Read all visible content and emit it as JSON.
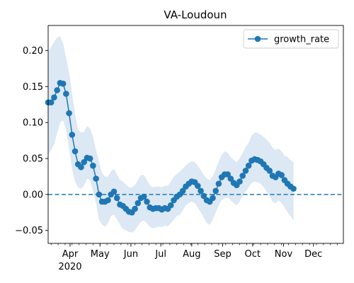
{
  "chart_data": {
    "type": "line",
    "title": "VA-Loudoun",
    "xlabel": "",
    "ylabel": "",
    "x_range": [
      "2020-03-10",
      "2020-12-31"
    ],
    "ylim": [
      -0.068,
      0.235
    ],
    "y_ticks": [
      -0.05,
      0.0,
      0.05,
      0.1,
      0.15,
      0.2
    ],
    "y_tick_labels": [
      "−0.05",
      "0.00",
      "0.05",
      "0.10",
      "0.15",
      "0.20"
    ],
    "x_ticks": [
      {
        "date": "2020-04-01",
        "label": "Apr",
        "sublabel": "2020"
      },
      {
        "date": "2020-05-01",
        "label": "May",
        "sublabel": ""
      },
      {
        "date": "2020-06-01",
        "label": "Jun",
        "sublabel": ""
      },
      {
        "date": "2020-07-01",
        "label": "Jul",
        "sublabel": ""
      },
      {
        "date": "2020-08-01",
        "label": "Aug",
        "sublabel": ""
      },
      {
        "date": "2020-09-01",
        "label": "Sep",
        "sublabel": ""
      },
      {
        "date": "2020-10-01",
        "label": "Oct",
        "sublabel": ""
      },
      {
        "date": "2020-11-01",
        "label": "Nov",
        "sublabel": ""
      },
      {
        "date": "2020-12-01",
        "label": "Dec",
        "sublabel": ""
      }
    ],
    "reference_line": {
      "y": 0,
      "style": "dashed"
    },
    "grid": false,
    "legend": {
      "position": "upper right",
      "entries": [
        "growth_rate"
      ]
    },
    "series": [
      {
        "name": "growth_rate",
        "color": "#1f77b4",
        "band_color": "#dce8f4",
        "points": [
          [
            "2020-03-10",
            0.128,
            0.198,
            0.055
          ],
          [
            "2020-03-13",
            0.128,
            0.205,
            0.062
          ],
          [
            "2020-03-16",
            0.135,
            0.212,
            0.07
          ],
          [
            "2020-03-19",
            0.145,
            0.218,
            0.085
          ],
          [
            "2020-03-22",
            0.155,
            0.22,
            0.1
          ],
          [
            "2020-03-25",
            0.154,
            0.21,
            0.103
          ],
          [
            "2020-03-28",
            0.14,
            0.19,
            0.09
          ],
          [
            "2020-03-31",
            0.113,
            0.17,
            0.063
          ],
          [
            "2020-04-03",
            0.083,
            0.14,
            0.035
          ],
          [
            "2020-04-06",
            0.06,
            0.112,
            0.018
          ],
          [
            "2020-04-09",
            0.042,
            0.09,
            0.01
          ],
          [
            "2020-04-12",
            0.038,
            0.086,
            0.008
          ],
          [
            "2020-04-15",
            0.045,
            0.087,
            0.012
          ],
          [
            "2020-04-18",
            0.051,
            0.095,
            0.022
          ],
          [
            "2020-04-21",
            0.05,
            0.092,
            0.02
          ],
          [
            "2020-04-24",
            0.04,
            0.08,
            0.005
          ],
          [
            "2020-04-27",
            0.022,
            0.062,
            -0.012
          ],
          [
            "2020-04-30",
            0.0,
            0.045,
            -0.035
          ],
          [
            "2020-05-03",
            -0.01,
            0.03,
            -0.042
          ],
          [
            "2020-05-06",
            -0.01,
            0.025,
            -0.045
          ],
          [
            "2020-05-09",
            -0.008,
            0.025,
            -0.04
          ],
          [
            "2020-05-12",
            0.0,
            0.032,
            -0.03
          ],
          [
            "2020-05-15",
            0.004,
            0.035,
            -0.028
          ],
          [
            "2020-05-18",
            -0.005,
            0.028,
            -0.035
          ],
          [
            "2020-05-21",
            -0.014,
            0.02,
            -0.042
          ],
          [
            "2020-05-24",
            -0.016,
            0.018,
            -0.048
          ],
          [
            "2020-05-27",
            -0.02,
            0.014,
            -0.05
          ],
          [
            "2020-05-30",
            -0.024,
            0.01,
            -0.052
          ],
          [
            "2020-06-02",
            -0.025,
            0.01,
            -0.053
          ],
          [
            "2020-06-05",
            -0.02,
            0.013,
            -0.05
          ],
          [
            "2020-06-08",
            -0.012,
            0.02,
            -0.043
          ],
          [
            "2020-06-11",
            -0.005,
            0.027,
            -0.038
          ],
          [
            "2020-06-14",
            -0.003,
            0.027,
            -0.036
          ],
          [
            "2020-06-17",
            -0.01,
            0.02,
            -0.04
          ],
          [
            "2020-06-20",
            -0.018,
            0.012,
            -0.045
          ],
          [
            "2020-06-23",
            -0.02,
            0.01,
            -0.047
          ],
          [
            "2020-06-26",
            -0.019,
            0.011,
            -0.046
          ],
          [
            "2020-06-29",
            -0.019,
            0.011,
            -0.045
          ],
          [
            "2020-07-02",
            -0.021,
            0.01,
            -0.045
          ],
          [
            "2020-07-05",
            -0.019,
            0.012,
            -0.043
          ],
          [
            "2020-07-08",
            -0.02,
            0.012,
            -0.044
          ],
          [
            "2020-07-11",
            -0.015,
            0.018,
            -0.04
          ],
          [
            "2020-07-14",
            -0.008,
            0.025,
            -0.035
          ],
          [
            "2020-07-17",
            -0.003,
            0.028,
            -0.03
          ],
          [
            "2020-07-20",
            0.0,
            0.032,
            -0.028
          ],
          [
            "2020-07-23",
            0.005,
            0.036,
            -0.022
          ],
          [
            "2020-07-26",
            0.011,
            0.04,
            -0.015
          ],
          [
            "2020-07-29",
            0.015,
            0.044,
            -0.012
          ],
          [
            "2020-08-01",
            0.018,
            0.046,
            -0.01
          ],
          [
            "2020-08-04",
            0.017,
            0.045,
            -0.012
          ],
          [
            "2020-08-07",
            0.012,
            0.04,
            -0.018
          ],
          [
            "2020-08-10",
            0.005,
            0.034,
            -0.025
          ],
          [
            "2020-08-13",
            -0.002,
            0.027,
            -0.032
          ],
          [
            "2020-08-16",
            -0.008,
            0.022,
            -0.04
          ],
          [
            "2020-08-19",
            -0.01,
            0.02,
            -0.042
          ],
          [
            "2020-08-22",
            -0.005,
            0.025,
            -0.035
          ],
          [
            "2020-08-25",
            0.005,
            0.035,
            -0.025
          ],
          [
            "2020-08-28",
            0.015,
            0.046,
            -0.015
          ],
          [
            "2020-08-31",
            0.024,
            0.055,
            -0.008
          ],
          [
            "2020-09-03",
            0.028,
            0.06,
            -0.005
          ],
          [
            "2020-09-06",
            0.028,
            0.058,
            -0.004
          ],
          [
            "2020-09-09",
            0.022,
            0.052,
            -0.008
          ],
          [
            "2020-09-12",
            0.016,
            0.048,
            -0.012
          ],
          [
            "2020-09-15",
            0.013,
            0.045,
            -0.015
          ],
          [
            "2020-09-18",
            0.018,
            0.05,
            -0.01
          ],
          [
            "2020-09-21",
            0.026,
            0.058,
            -0.002
          ],
          [
            "2020-09-24",
            0.033,
            0.066,
            0.004
          ],
          [
            "2020-09-27",
            0.04,
            0.072,
            0.01
          ],
          [
            "2020-09-30",
            0.047,
            0.082,
            0.016
          ],
          [
            "2020-10-03",
            0.049,
            0.086,
            0.018
          ],
          [
            "2020-10-06",
            0.048,
            0.086,
            0.017
          ],
          [
            "2020-10-09",
            0.046,
            0.083,
            0.015
          ],
          [
            "2020-10-12",
            0.042,
            0.08,
            0.01
          ],
          [
            "2020-10-15",
            0.037,
            0.076,
            0.004
          ],
          [
            "2020-10-18",
            0.033,
            0.072,
            -0.002
          ],
          [
            "2020-10-21",
            0.026,
            0.065,
            -0.01
          ],
          [
            "2020-10-24",
            0.024,
            0.062,
            -0.012
          ],
          [
            "2020-10-27",
            0.029,
            0.064,
            -0.008
          ],
          [
            "2020-10-30",
            0.027,
            0.06,
            -0.012
          ],
          [
            "2020-11-02",
            0.02,
            0.054,
            -0.018
          ],
          [
            "2020-11-05",
            0.015,
            0.052,
            -0.025
          ],
          [
            "2020-11-08",
            0.011,
            0.048,
            -0.03
          ],
          [
            "2020-11-11",
            0.008,
            0.045,
            -0.036
          ]
        ]
      }
    ]
  }
}
